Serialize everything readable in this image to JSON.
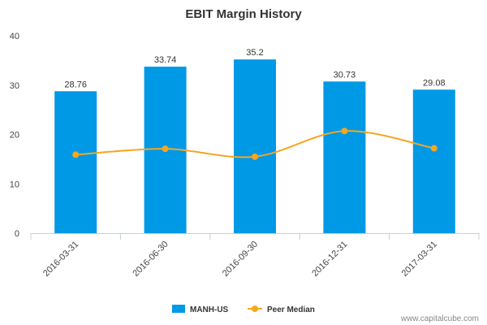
{
  "chart_data": {
    "type": "bar",
    "title": "EBIT Margin History",
    "xlabel": "",
    "ylabel": "",
    "categories": [
      "2016-03-31",
      "2016-06-30",
      "2016-09-30",
      "2016-12-31",
      "2017-03-31"
    ],
    "series": [
      {
        "name": "MANH-US",
        "type": "bar",
        "values": [
          28.76,
          33.74,
          35.2,
          30.73,
          29.08
        ],
        "color": "#0099e6",
        "data_labels": [
          "28.76",
          "33.74",
          "35.2",
          "30.73",
          "29.08"
        ]
      },
      {
        "name": "Peer Median",
        "type": "line",
        "smooth": true,
        "values": [
          15.9,
          17.1,
          15.5,
          20.7,
          17.2
        ],
        "color": "#f5a623"
      }
    ],
    "ylim": [
      0,
      40
    ],
    "yticks": [
      "0",
      "10",
      "20",
      "30",
      "40"
    ],
    "grid": false,
    "legend": "bottom"
  },
  "credit": "www.capitalcube.com"
}
